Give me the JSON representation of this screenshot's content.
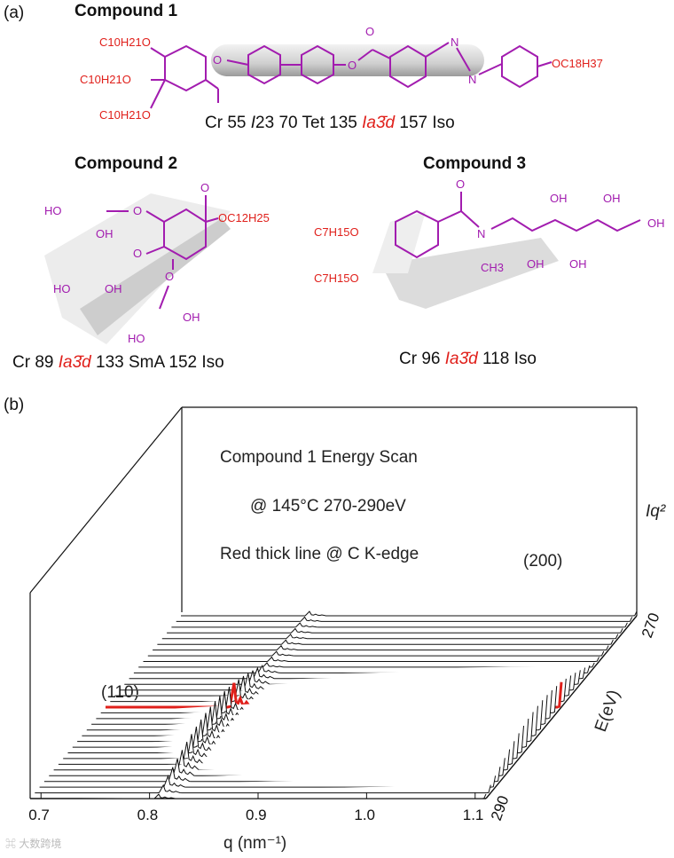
{
  "panel_a": {
    "label": "(a)",
    "compound1": {
      "title": "Compound 1",
      "chains": [
        "C10H21O",
        "C10H21O",
        "C10H21O"
      ],
      "tail": "OC18H37",
      "phase": {
        "p1": "Cr 55 ",
        "p2": "I",
        "p3": "23 70 Tet 135 ",
        "p4": "Ia3̄d",
        "p5": " 157 Iso"
      }
    },
    "compound2": {
      "title": "Compound 2",
      "groups": [
        "HO",
        "OH",
        "HO",
        "OH",
        "OH",
        "HO"
      ],
      "ester": "OC12H25",
      "phase": {
        "p1": "Cr 89 ",
        "p2": "Ia3̄d",
        "p3": " 133 SmA 152 Iso"
      }
    },
    "compound3": {
      "title": "Compound 3",
      "chains": [
        "C7H15O",
        "C7H15O"
      ],
      "groups": [
        "OH",
        "OH",
        "OH",
        "OH",
        "OH"
      ],
      "amine": {
        "n": "N",
        "methyl": "CH3"
      },
      "phase": {
        "p1": "Cr 96 ",
        "p2": "Ia3̄d",
        "p3": " 118 Iso"
      }
    }
  },
  "panel_b": {
    "label": "(b)",
    "annotations": [
      "Compound 1 Energy Scan",
      "@ 145°C 270-290eV",
      "Red thick line @ C K-edge"
    ],
    "peak_labels": [
      "(110)",
      "(200)"
    ],
    "z_label": "Iq²"
  },
  "chart_data": {
    "type": "line",
    "title": "Compound 1 Energy Scan",
    "xlabel": "q (nm⁻¹)",
    "ylabel": "E(eV)",
    "zlabel": "Iq²",
    "x_ticks": [
      "0.7",
      "0.8",
      "0.9",
      "1.0",
      "1.1"
    ],
    "xlim": [
      0.69,
      1.11
    ],
    "y_ticks": [
      "290",
      "270"
    ],
    "ylim": [
      290,
      270
    ],
    "n_traces": 33,
    "highlight_trace_index": 16,
    "highlight_color": "#e0201b",
    "peaks": [
      {
        "name": "(110)",
        "q": 0.808,
        "height": 1.0
      },
      {
        "name": "(200)",
        "q": 1.112,
        "height": 3.4
      }
    ]
  }
}
